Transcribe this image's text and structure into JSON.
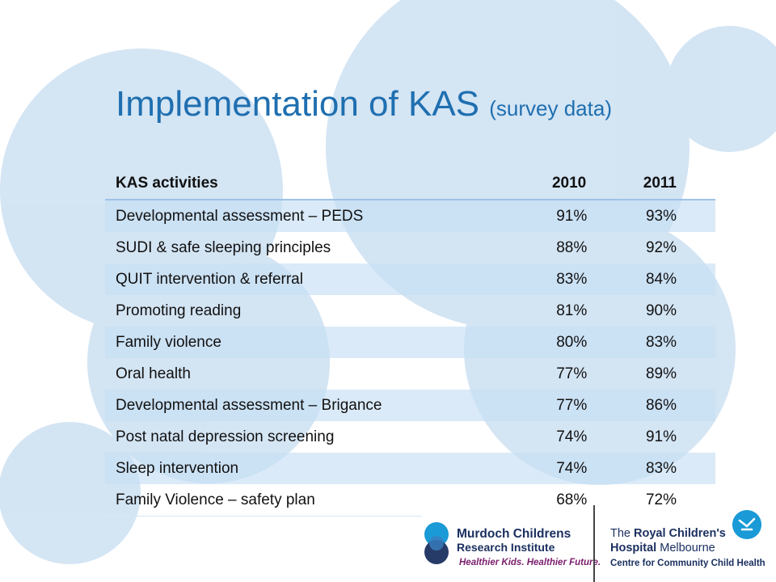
{
  "slide": {
    "title_main": "Implementation of KAS",
    "title_sub": "(survey data)"
  },
  "table": {
    "headers": [
      "KAS activities",
      "2010",
      "2011"
    ],
    "rows": [
      [
        "Developmental assessment – PEDS",
        "91%",
        "93%"
      ],
      [
        "SUDI & safe sleeping principles",
        "88%",
        "92%"
      ],
      [
        "QUIT intervention & referral",
        "83%",
        "84%"
      ],
      [
        "Promoting reading",
        "81%",
        "90%"
      ],
      [
        "Family violence",
        "80%",
        "83%"
      ],
      [
        "Oral health",
        "77%",
        "89%"
      ],
      [
        "Developmental assessment – Brigance",
        "77%",
        "86%"
      ],
      [
        "Post natal depression screening",
        "74%",
        "91%"
      ],
      [
        "Sleep intervention",
        "74%",
        "83%"
      ],
      [
        "Family Violence – safety plan",
        "68%",
        "72%"
      ]
    ]
  },
  "logos": {
    "mcri_line1": "Murdoch Childrens",
    "mcri_line2": "Research Institute",
    "mcri_tagline": "Healthier Kids. Healthier Future.",
    "rch_line1_a": "The",
    "rch_line1_b": "Royal Children's",
    "rch_line2_a": "Hospital",
    "rch_line2_b": "Melbourne",
    "rch_line3": "Centre for Community Child Health"
  },
  "colors": {
    "title": "#1f6fb0",
    "circles": "#c5dcf0",
    "table_stripe": "#c6def4",
    "mcri_navy": "#1b3060",
    "mcri_purple": "#7a1d6e",
    "rch_blue": "#1a9ad6"
  }
}
